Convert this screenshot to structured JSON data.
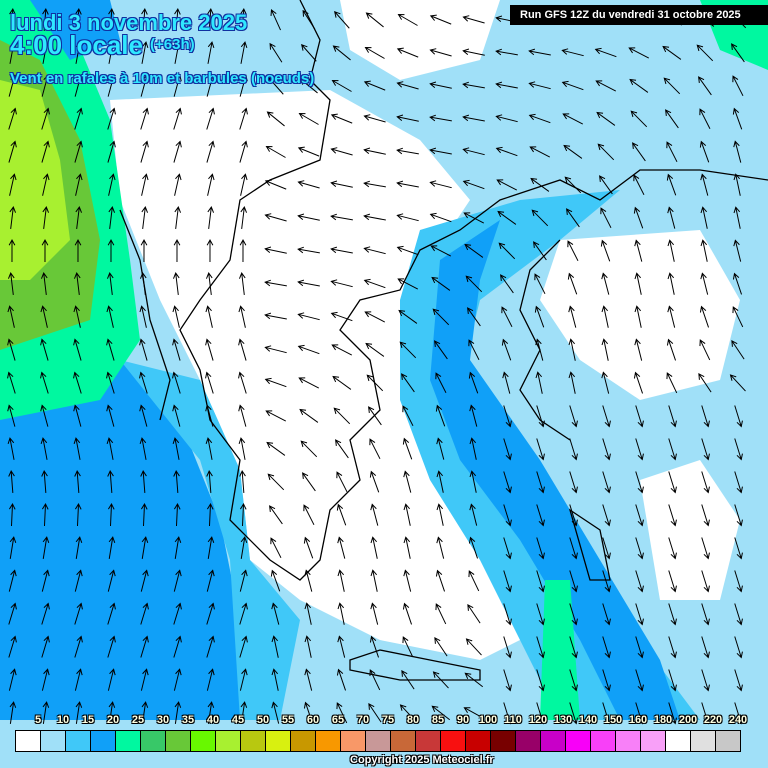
{
  "header": {
    "date": "lundi 3 novembre 2025",
    "time": "4:00 locale",
    "lead": "(+63h)",
    "field": "Vent en rafales à 10m et barbules (noeuds)",
    "run": "Run GFS 12Z du vendredi 31 octobre 2025"
  },
  "legend": {
    "labels": [
      "5",
      "10",
      "15",
      "20",
      "25",
      "30",
      "35",
      "40",
      "45",
      "50",
      "55",
      "60",
      "65",
      "70",
      "75",
      "80",
      "85",
      "90",
      "100",
      "110",
      "120",
      "130",
      "140",
      "150",
      "160",
      "180",
      "200",
      "220",
      "240"
    ],
    "colors": [
      "#ffffff",
      "#a0e0f8",
      "#40c8f8",
      "#10a0f8",
      "#00f8a0",
      "#38c868",
      "#68c838",
      "#68f800",
      "#a8f030",
      "#b8c810",
      "#d8f010",
      "#c89800",
      "#f89800",
      "#f89868",
      "#c89898",
      "#c86838",
      "#c83838",
      "#f81010",
      "#c80000",
      "#780000",
      "#980068",
      "#c800c8",
      "#f800f8",
      "#f840f8",
      "#f880f8",
      "#f8a0f8",
      "#ffffff",
      "#e0e0e0",
      "#c8c8c8"
    ]
  },
  "footer": {
    "copyright": "Copyright 2025 Meteociel.fr"
  }
}
